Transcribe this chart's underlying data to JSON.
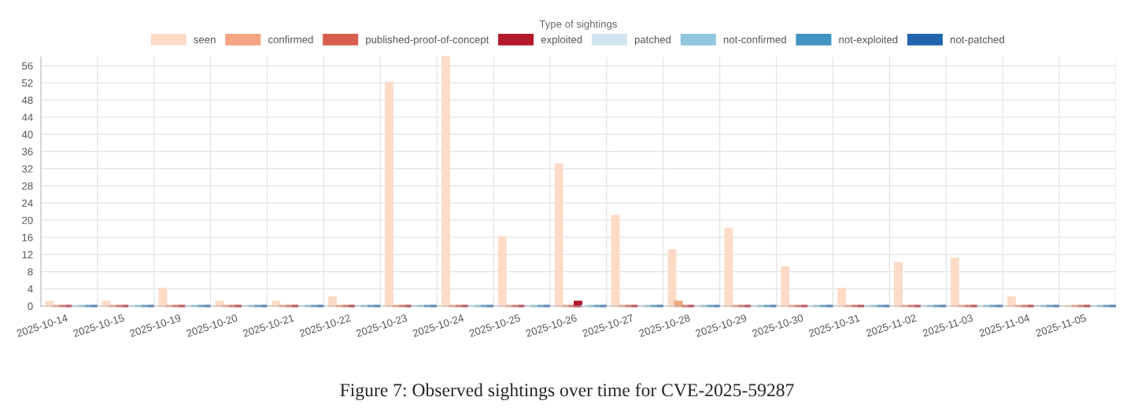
{
  "chart_data": {
    "type": "bar",
    "legend_title": "Type of sightings",
    "categories": [
      "2025-10-14",
      "2025-10-15",
      "2025-10-19",
      "2025-10-20",
      "2025-10-21",
      "2025-10-22",
      "2025-10-23",
      "2025-10-24",
      "2025-10-25",
      "2025-10-26",
      "2025-10-27",
      "2025-10-28",
      "2025-10-29",
      "2025-10-30",
      "2025-10-31",
      "2025-11-02",
      "2025-11-03",
      "2025-11-04",
      "2025-11-05"
    ],
    "series": [
      {
        "name": "seen",
        "color": "#fddbc7",
        "values": [
          1,
          1,
          4,
          1,
          1,
          2,
          52,
          58,
          16,
          33,
          21,
          13,
          18,
          9,
          4,
          10,
          11,
          2,
          0
        ]
      },
      {
        "name": "confirmed",
        "color": "#f4a582",
        "values": [
          0,
          0,
          0,
          0,
          0,
          0,
          0,
          0,
          0,
          0,
          0,
          1,
          0,
          0,
          0,
          0,
          0,
          0,
          0
        ]
      },
      {
        "name": "published-proof-of-concept",
        "color": "#d6604d",
        "values": [
          0,
          0,
          0,
          0,
          0,
          0,
          0,
          0,
          0,
          0,
          0,
          0,
          0,
          0,
          0,
          0,
          0,
          0,
          0
        ]
      },
      {
        "name": "exploited",
        "color": "#b2182b",
        "values": [
          0,
          0,
          0,
          0,
          0,
          0,
          0,
          0,
          0,
          1,
          0,
          0,
          0,
          0,
          0,
          0,
          0,
          0,
          0
        ]
      },
      {
        "name": "patched",
        "color": "#d1e5f0",
        "values": [
          0,
          0,
          0,
          0,
          0,
          0,
          0,
          0,
          0,
          0,
          0,
          0,
          0,
          0,
          0,
          0,
          0,
          0,
          0
        ]
      },
      {
        "name": "not-confirmed",
        "color": "#92c5de",
        "values": [
          0,
          0,
          0,
          0,
          0,
          0,
          0,
          0,
          0,
          0,
          0,
          0,
          0,
          0,
          0,
          0,
          0,
          0,
          0
        ]
      },
      {
        "name": "not-exploited",
        "color": "#4393c3",
        "values": [
          0,
          0,
          0,
          0,
          0,
          0,
          0,
          0,
          0,
          0,
          0,
          0,
          0,
          0,
          0,
          0,
          0,
          0,
          0
        ]
      },
      {
        "name": "not-patched",
        "color": "#2166ac",
        "values": [
          0,
          0,
          0,
          0,
          0,
          0,
          0,
          0,
          0,
          0,
          0,
          0,
          0,
          0,
          0,
          0,
          0,
          0,
          0
        ]
      }
    ],
    "ylim": [
      0,
      58
    ],
    "yticks": [
      0,
      4,
      8,
      12,
      16,
      20,
      24,
      28,
      32,
      36,
      40,
      44,
      48,
      52,
      56
    ],
    "grid": true,
    "legend": "top",
    "annotations": [
      "Figure 7: Observed sightings over time for CVE-2025-59287"
    ]
  }
}
